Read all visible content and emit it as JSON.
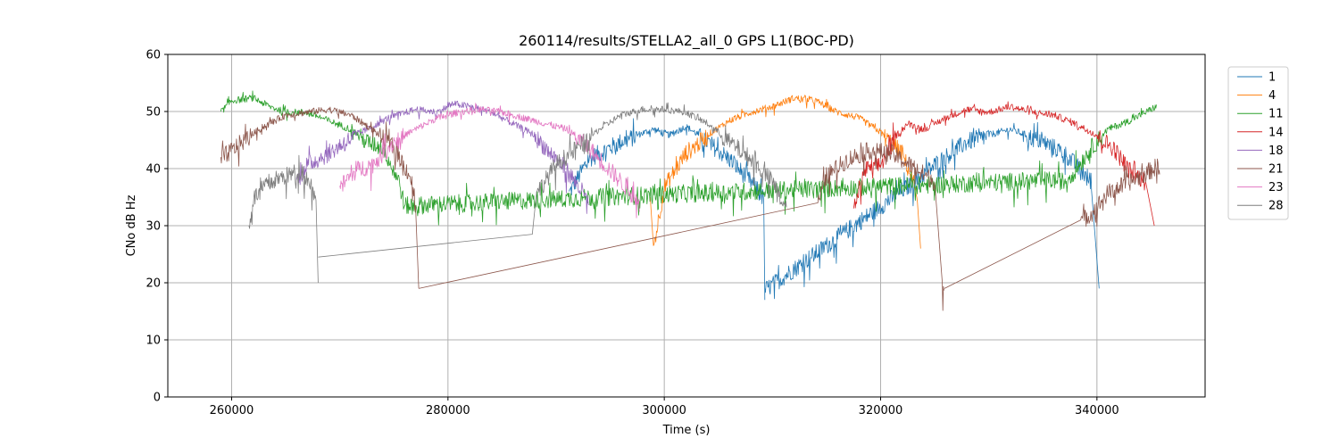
{
  "chart_data": {
    "type": "line",
    "title": "260114/results/STELLA2_all_0 GPS L1(BOC-PD)",
    "xlabel": "Time (s)",
    "ylabel": "CNo dB Hz",
    "xlim": [
      254100,
      350000
    ],
    "ylim": [
      0,
      60
    ],
    "xticks": [
      260000,
      280000,
      300000,
      320000,
      340000
    ],
    "xtick_labels": [
      "260000",
      "280000",
      "300000",
      "320000",
      "340000"
    ],
    "yticks": [
      0,
      10,
      20,
      30,
      40,
      50,
      60
    ],
    "ytick_labels": [
      "0",
      "10",
      "20",
      "30",
      "40",
      "50",
      "60"
    ],
    "grid": true,
    "legend_position": "outside-right-top",
    "series": [
      {
        "name": "1",
        "color": "#1f77b4",
        "segments": [
          [
            [
              291200,
              36
            ],
            [
              293000,
              42
            ],
            [
              296000,
              45
            ],
            [
              299000,
              47
            ],
            [
              300500,
              46
            ],
            [
              302000,
              47.5
            ],
            [
              304000,
              45
            ],
            [
              306000,
              42
            ],
            [
              308000,
              38
            ],
            [
              309200,
              35
            ],
            [
              309300,
              17
            ]
          ],
          [
            [
              309300,
              19
            ],
            [
              323500,
              38.5
            ],
            [
              325000,
              41
            ],
            [
              328000,
              45
            ],
            [
              332000,
              47
            ],
            [
              335000,
              45
            ],
            [
              337000,
              43
            ],
            [
              339500,
              38
            ],
            [
              340200,
              19
            ]
          ]
        ]
      },
      {
        "name": "4",
        "color": "#ff7f0e",
        "segments": [
          [
            [
              298700,
              35
            ],
            [
              299000,
              26.5
            ],
            [
              300000,
              37
            ],
            [
              302000,
              43
            ],
            [
              304000,
              46
            ],
            [
              306000,
              48.5
            ],
            [
              308000,
              50
            ],
            [
              310000,
              51
            ],
            [
              312000,
              52.5
            ],
            [
              314000,
              52
            ],
            [
              316000,
              50
            ],
            [
              318000,
              49
            ],
            [
              320000,
              46.5
            ],
            [
              322000,
              43
            ],
            [
              323400,
              36
            ],
            [
              323700,
              26
            ]
          ]
        ]
      },
      {
        "name": "11",
        "color": "#2ca02c",
        "segments": [
          [
            [
              259000,
              50
            ],
            [
              260000,
              52
            ],
            [
              262000,
              52.5
            ],
            [
              263500,
              51
            ],
            [
              265000,
              50
            ],
            [
              267000,
              50
            ],
            [
              269000,
              48.5
            ],
            [
              271000,
              47
            ],
            [
              272500,
              45
            ],
            [
              274000,
              44
            ],
            [
              275500,
              38
            ],
            [
              276000,
              33.5
            ],
            [
              276100,
              33.8
            ],
            [
              300000,
              35.8
            ],
            [
              336300,
              38.3
            ],
            [
              337000,
              38
            ],
            [
              338000,
              40
            ],
            [
              339500,
              44
            ],
            [
              341000,
              47
            ],
            [
              343000,
              48.5
            ],
            [
              345500,
              51
            ]
          ]
        ]
      },
      {
        "name": "14",
        "color": "#d62728",
        "segments": [
          [
            [
              317500,
              33
            ],
            [
              318500,
              40
            ],
            [
              320000,
              41
            ],
            [
              321500,
              46
            ],
            [
              322500,
              48
            ],
            [
              324000,
              47
            ],
            [
              326000,
              49
            ],
            [
              328000,
              50.5
            ],
            [
              330000,
              50
            ],
            [
              332000,
              51
            ],
            [
              334000,
              50
            ],
            [
              336000,
              49.5
            ],
            [
              338000,
              48
            ],
            [
              340000,
              46
            ],
            [
              341500,
              44
            ],
            [
              343000,
              40
            ],
            [
              344500,
              38
            ],
            [
              345300,
              30
            ]
          ]
        ]
      },
      {
        "name": "18",
        "color": "#9467bd",
        "segments": [
          [
            [
              266000,
              38
            ],
            [
              267000,
              41
            ],
            [
              269000,
              43
            ],
            [
              270500,
              45
            ],
            [
              272500,
              47
            ],
            [
              274500,
              49
            ],
            [
              277000,
              50.5
            ],
            [
              279000,
              50
            ],
            [
              280500,
              51.5
            ],
            [
              282000,
              51
            ],
            [
              284000,
              50
            ],
            [
              286000,
              48
            ],
            [
              288000,
              46
            ],
            [
              289500,
              43
            ],
            [
              291000,
              40
            ],
            [
              292500,
              36
            ],
            [
              293000,
              34
            ]
          ]
        ]
      },
      {
        "name": "21",
        "color": "#8c564b",
        "segments": [
          [
            [
              259000,
              42
            ],
            [
              261000,
              45
            ],
            [
              263000,
              47.5
            ],
            [
              265000,
              49.5
            ],
            [
              267000,
              50
            ],
            [
              269000,
              50.5
            ],
            [
              271000,
              49.5
            ],
            [
              273000,
              47
            ],
            [
              275000,
              44
            ],
            [
              276500,
              39
            ],
            [
              277000,
              35
            ],
            [
              277300,
              19
            ]
          ],
          [
            [
              277300,
              19
            ],
            [
              314200,
              34
            ],
            [
              315000,
              39
            ],
            [
              317000,
              42
            ],
            [
              319000,
              43.5
            ],
            [
              321000,
              43
            ],
            [
              323500,
              40
            ],
            [
              325000,
              38
            ],
            [
              325700,
              20
            ],
            [
              325900,
              19
            ]
          ],
          [
            [
              325900,
              19
            ],
            [
              338500,
              31
            ],
            [
              339500,
              32.5
            ],
            [
              341000,
              36
            ],
            [
              343000,
              38
            ],
            [
              345000,
              40
            ],
            [
              345800,
              41
            ]
          ]
        ]
      },
      {
        "name": "23",
        "color": "#e377c2",
        "segments": [
          [
            [
              270000,
              37
            ],
            [
              271500,
              40
            ],
            [
              273000,
              41
            ],
            [
              275000,
              45
            ],
            [
              277000,
              47
            ],
            [
              279000,
              49
            ],
            [
              281000,
              50
            ],
            [
              283000,
              50.5
            ],
            [
              285000,
              50
            ],
            [
              287000,
              49
            ],
            [
              289000,
              48
            ],
            [
              291000,
              47
            ],
            [
              293000,
              44
            ],
            [
              295000,
              40
            ],
            [
              296500,
              37
            ],
            [
              297700,
              34
            ]
          ]
        ]
      },
      {
        "name": "28",
        "color": "#7f7f7f",
        "segments": [
          [
            [
              261600,
              30
            ],
            [
              262000,
              35
            ],
            [
              263500,
              38
            ],
            [
              265000,
              39
            ],
            [
              266500,
              40
            ],
            [
              267800,
              36
            ],
            [
              268000,
              20
            ]
          ],
          [
            [
              268000,
              24.5
            ],
            [
              287800,
              28.5
            ],
            [
              288200,
              36
            ],
            [
              290000,
              41
            ],
            [
              292000,
              44
            ],
            [
              294000,
              47
            ],
            [
              296000,
              49.5
            ],
            [
              298000,
              50.5
            ],
            [
              300000,
              50.5
            ],
            [
              302000,
              50
            ],
            [
              304000,
              48
            ],
            [
              306000,
              45
            ],
            [
              308000,
              42
            ],
            [
              310000,
              38
            ],
            [
              311300,
              33
            ]
          ]
        ]
      }
    ]
  }
}
